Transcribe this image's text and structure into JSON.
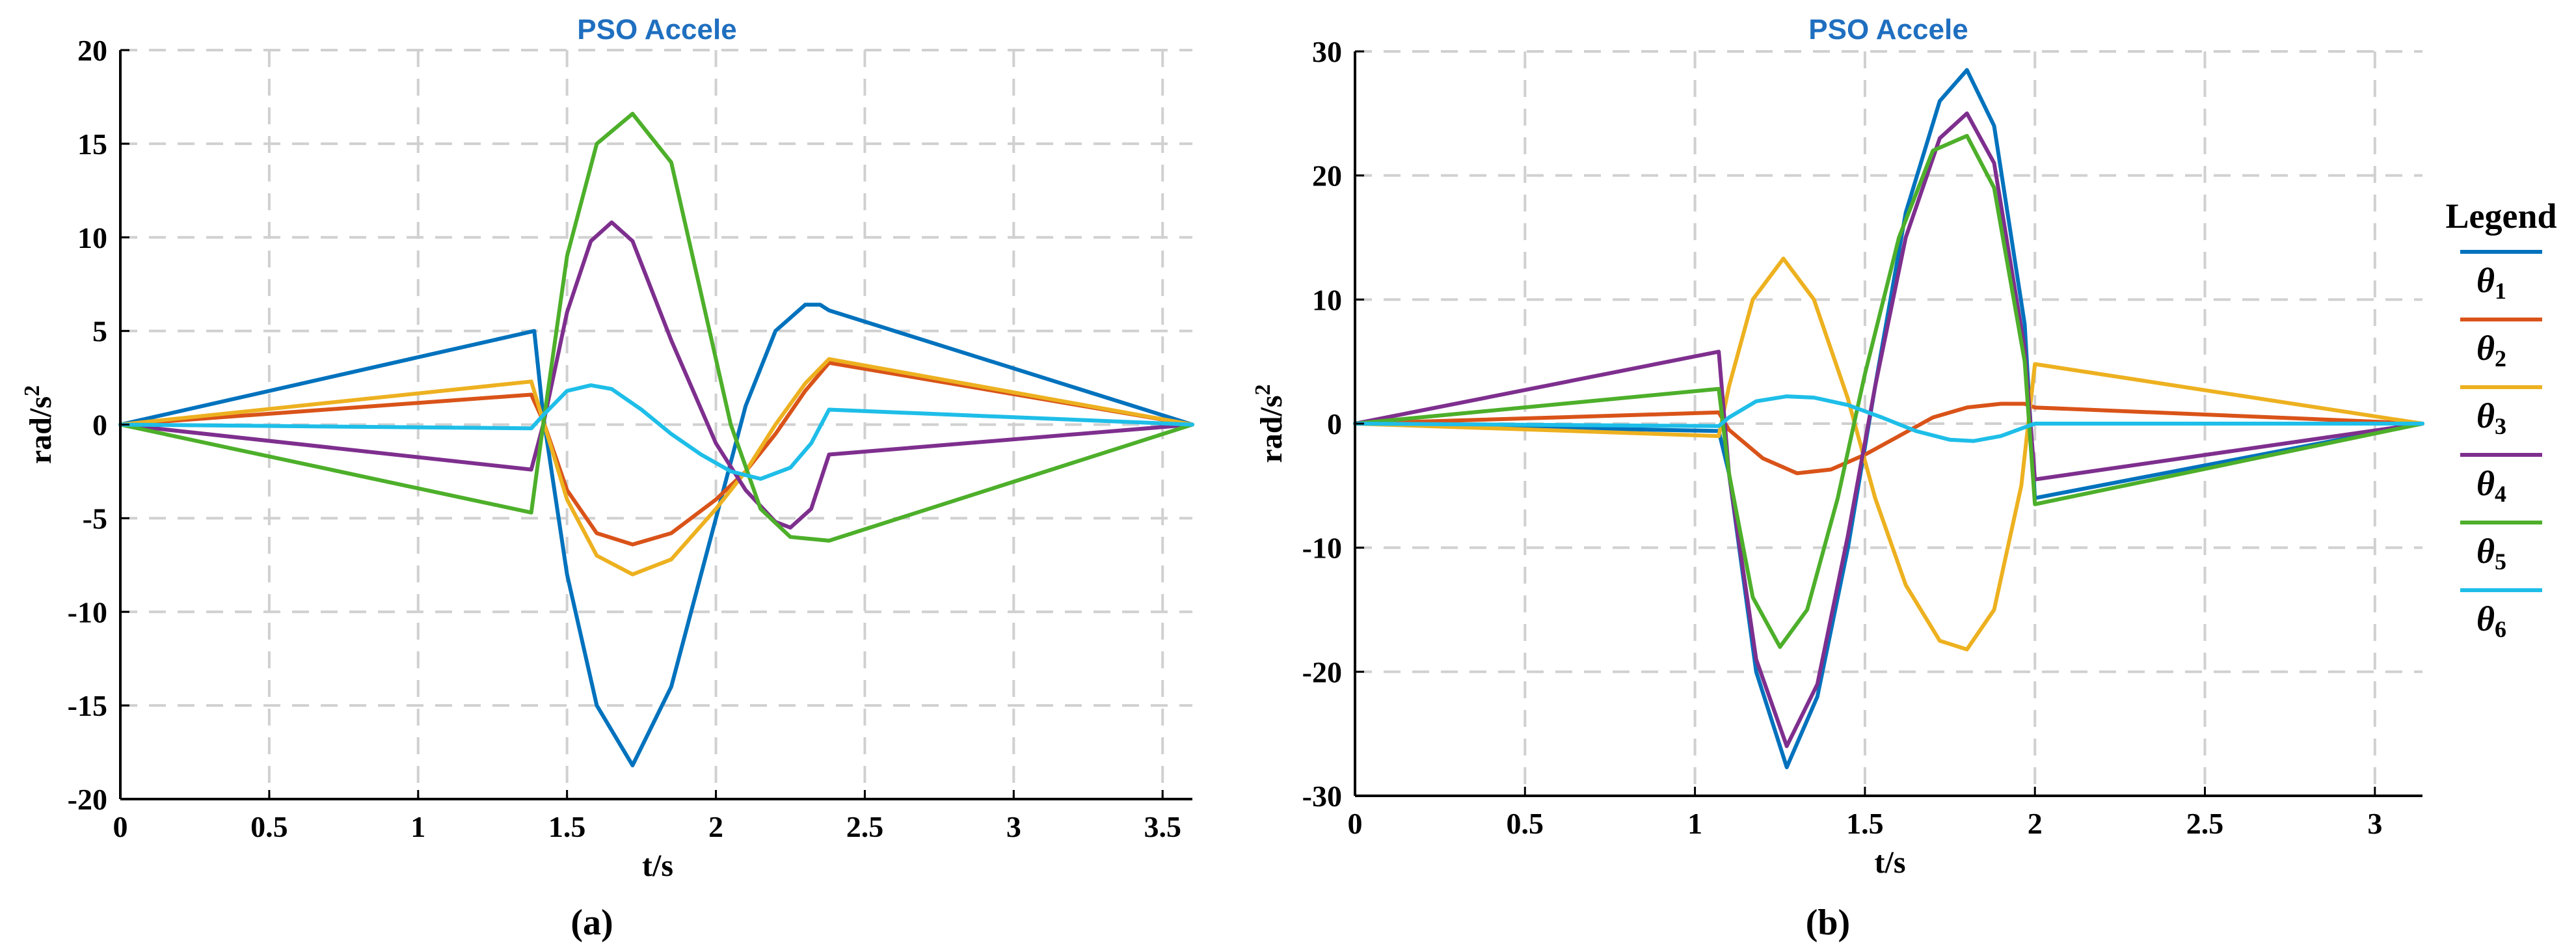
{
  "colors": {
    "theta1": "#0072BD",
    "theta2": "#D95319",
    "theta3": "#EDB120",
    "theta4": "#7E2F8E",
    "theta5": "#4DAF2A",
    "theta6": "#1EBEE8",
    "title": "#1F6FC0",
    "grid": "#d0d0d0"
  },
  "legend": {
    "title": "Legend",
    "items": [
      "θ1",
      "θ2",
      "θ3",
      "θ4",
      "θ5",
      "θ6"
    ]
  },
  "chart_data": [
    {
      "type": "line",
      "panel_label": "(a)",
      "title": "PSO Accele",
      "xlabel": "t/s",
      "ylabel": "rad/s2",
      "xlim": [
        0,
        3.6
      ],
      "ylim": [
        -20,
        20
      ],
      "xticks": [
        0,
        0.5,
        1,
        1.5,
        2,
        2.5,
        3,
        3.5
      ],
      "xtick_labels": [
        "0",
        "0.5",
        "1",
        "1.5",
        "2",
        "2.5",
        "3",
        "3.5"
      ],
      "yticks": [
        20,
        15,
        10,
        5,
        0,
        -5,
        -10,
        -15,
        -20
      ],
      "ytick_labels": [
        "20",
        "15",
        "10",
        "5",
        "0",
        "-5",
        "-10",
        "-15",
        "-20"
      ],
      "grid": true,
      "series": [
        {
          "name": "θ1",
          "x": [
            0,
            1.39,
            1.42,
            1.5,
            1.6,
            1.72,
            1.85,
            2.0,
            2.1,
            2.2,
            2.3,
            2.35,
            2.38,
            3.6
          ],
          "y": [
            0,
            5.0,
            0.5,
            -8,
            -15,
            -18.2,
            -14,
            -5,
            1,
            5,
            6.4,
            6.4,
            6.1,
            0
          ]
        },
        {
          "name": "θ2",
          "x": [
            0,
            1.38,
            1.42,
            1.5,
            1.6,
            1.72,
            1.85,
            2.0,
            2.1,
            2.2,
            2.3,
            2.38,
            3.6
          ],
          "y": [
            0,
            1.6,
            0.2,
            -3.5,
            -5.8,
            -6.4,
            -5.8,
            -4.0,
            -2.5,
            -0.5,
            1.8,
            3.3,
            0
          ]
        },
        {
          "name": "θ3",
          "x": [
            0,
            1.38,
            1.42,
            1.5,
            1.6,
            1.72,
            1.85,
            2.0,
            2.1,
            2.2,
            2.3,
            2.38,
            3.6
          ],
          "y": [
            0,
            2.3,
            0.2,
            -4,
            -7,
            -8.0,
            -7.2,
            -4.5,
            -2.5,
            0,
            2.2,
            3.5,
            0
          ]
        },
        {
          "name": "θ4",
          "x": [
            0,
            1.38,
            1.42,
            1.5,
            1.58,
            1.65,
            1.72,
            1.85,
            2.0,
            2.1,
            2.2,
            2.25,
            2.32,
            2.38,
            3.6
          ],
          "y": [
            0,
            -2.4,
            0,
            6,
            9.8,
            10.8,
            9.8,
            4.5,
            -1,
            -3.5,
            -5.2,
            -5.5,
            -4.5,
            -1.6,
            0
          ]
        },
        {
          "name": "θ5",
          "x": [
            0,
            1.38,
            1.42,
            1.5,
            1.6,
            1.72,
            1.85,
            1.95,
            2.05,
            2.15,
            2.25,
            2.38,
            3.6
          ],
          "y": [
            0,
            -4.7,
            0,
            9,
            15,
            16.6,
            14,
            7,
            0,
            -4.5,
            -6,
            -6.2,
            0
          ]
        },
        {
          "name": "θ6",
          "x": [
            0,
            1.38,
            1.42,
            1.5,
            1.58,
            1.65,
            1.75,
            1.85,
            1.95,
            2.05,
            2.15,
            2.25,
            2.32,
            2.38,
            3.6
          ],
          "y": [
            0,
            -0.2,
            0.5,
            1.8,
            2.1,
            1.9,
            0.8,
            -0.5,
            -1.6,
            -2.5,
            -2.9,
            -2.3,
            -1.0,
            0.8,
            0
          ]
        }
      ]
    },
    {
      "type": "line",
      "panel_label": "(b)",
      "title": "PSO Accele",
      "xlabel": "t/s",
      "ylabel": "rad/s2",
      "xlim": [
        0,
        3.14
      ],
      "ylim": [
        -30,
        30
      ],
      "xticks": [
        0,
        0.5,
        1,
        1.5,
        2,
        2.5,
        3
      ],
      "xtick_labels": [
        "0",
        "0.5",
        "1",
        "1.5",
        "2",
        "2.5",
        "3"
      ],
      "yticks": [
        30,
        20,
        10,
        0,
        -10,
        -20,
        -30
      ],
      "ytick_labels": [
        "30",
        "20",
        "10",
        "0",
        "-10",
        "-20",
        "-30"
      ],
      "grid": true,
      "series": [
        {
          "name": "θ1",
          "x": [
            0,
            1.07,
            1.1,
            1.18,
            1.27,
            1.36,
            1.45,
            1.53,
            1.62,
            1.72,
            1.8,
            1.88,
            1.97,
            2.0,
            3.14
          ],
          "y": [
            0,
            -0.6,
            -4,
            -20,
            -27.7,
            -22,
            -10,
            3,
            17,
            26,
            28.5,
            24,
            8,
            -6,
            0
          ]
        },
        {
          "name": "θ2",
          "x": [
            0,
            1.07,
            1.1,
            1.2,
            1.3,
            1.4,
            1.5,
            1.6,
            1.7,
            1.8,
            1.9,
            1.97,
            2.0,
            3.14
          ],
          "y": [
            0,
            0.9,
            -0.5,
            -2.8,
            -4.0,
            -3.7,
            -2.5,
            -1.0,
            0.5,
            1.3,
            1.6,
            1.6,
            1.3,
            0
          ]
        },
        {
          "name": "θ3",
          "x": [
            0,
            1.07,
            1.1,
            1.17,
            1.26,
            1.35,
            1.45,
            1.53,
            1.62,
            1.72,
            1.8,
            1.88,
            1.96,
            2.0,
            3.14
          ],
          "y": [
            0,
            -1.0,
            3,
            10,
            13.3,
            10,
            2,
            -6,
            -13,
            -17.5,
            -18.2,
            -15,
            -5,
            4.8,
            0
          ]
        },
        {
          "name": "θ4",
          "x": [
            0,
            1.07,
            1.1,
            1.18,
            1.27,
            1.36,
            1.45,
            1.53,
            1.62,
            1.72,
            1.8,
            1.88,
            1.97,
            2.0,
            3.14
          ],
          "y": [
            0,
            5.8,
            -4,
            -19,
            -26,
            -21,
            -9,
            3,
            15,
            23,
            25,
            21,
            6,
            -4.5,
            0
          ]
        },
        {
          "name": "θ5",
          "x": [
            0,
            1.07,
            1.1,
            1.17,
            1.25,
            1.33,
            1.42,
            1.5,
            1.6,
            1.7,
            1.8,
            1.88,
            1.97,
            2.0,
            3.14
          ],
          "y": [
            0,
            2.8,
            -4,
            -14,
            -18,
            -15,
            -6,
            4,
            15,
            22,
            23.2,
            19,
            5,
            -6.5,
            0
          ]
        },
        {
          "name": "θ6",
          "x": [
            0,
            1.07,
            1.1,
            1.18,
            1.27,
            1.35,
            1.45,
            1.55,
            1.65,
            1.75,
            1.82,
            1.9,
            1.97,
            2.0,
            3.14
          ],
          "y": [
            0,
            -0.2,
            0.5,
            1.8,
            2.2,
            2.1,
            1.5,
            0.5,
            -0.6,
            -1.3,
            -1.4,
            -1.0,
            -0.3,
            0,
            0
          ]
        }
      ]
    }
  ]
}
